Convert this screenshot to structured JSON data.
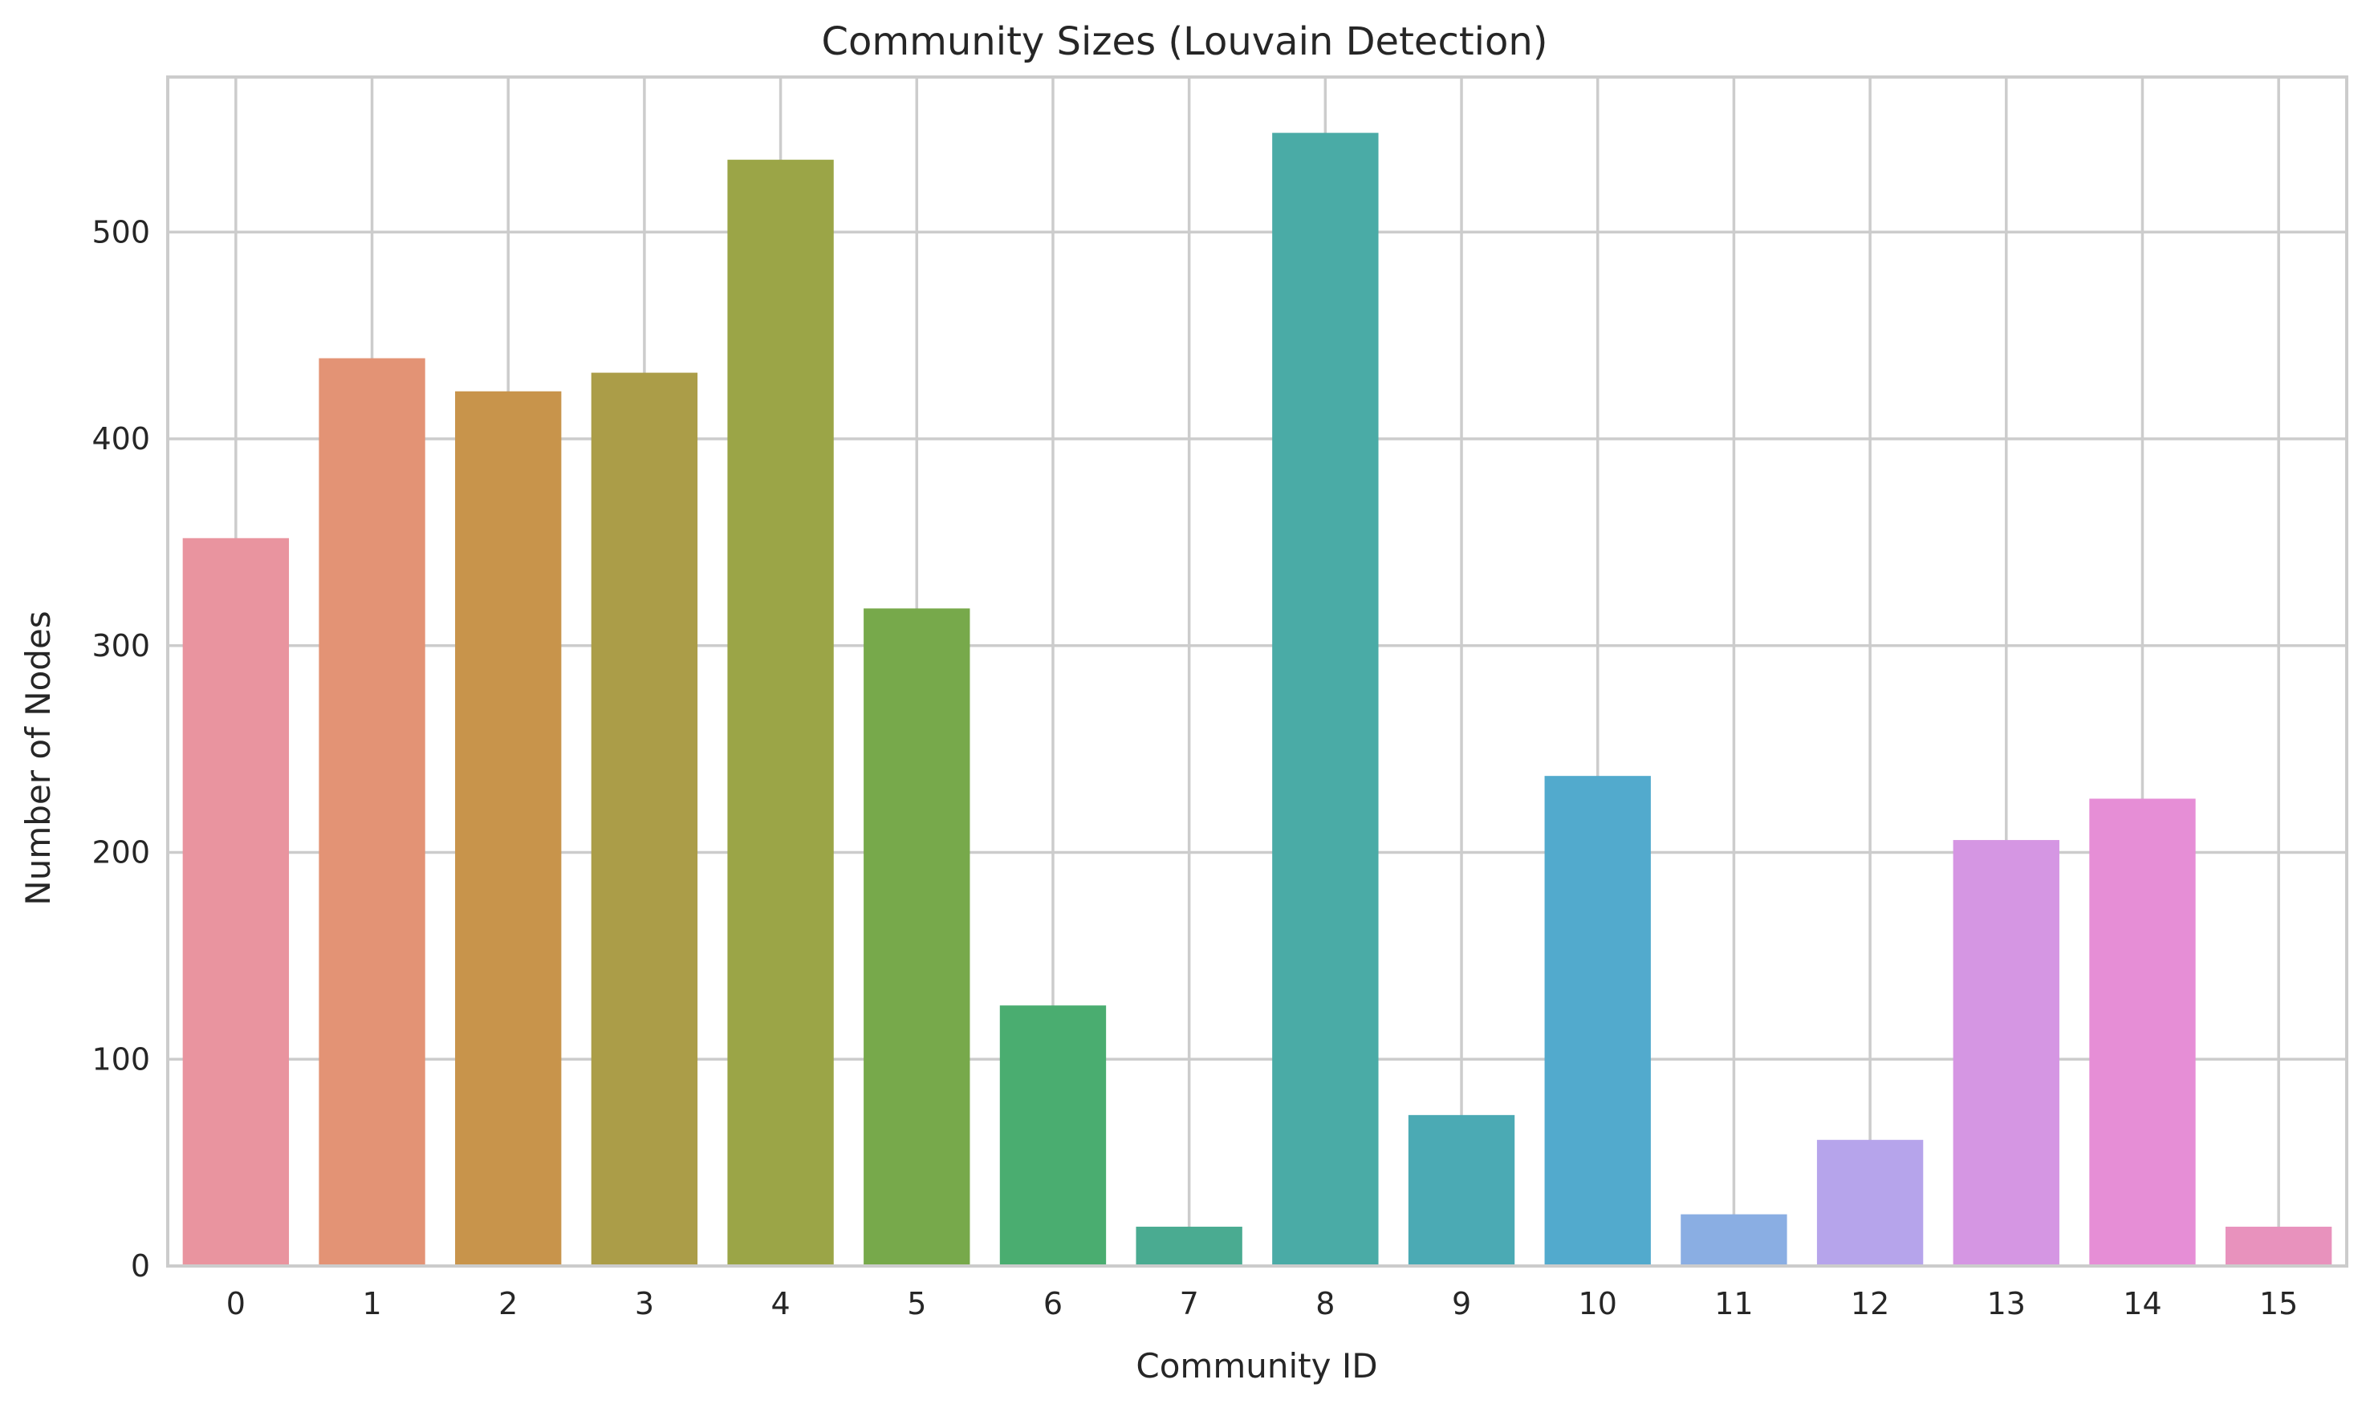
{
  "chart_data": {
    "type": "bar",
    "title": "Community Sizes (Louvain Detection)",
    "xlabel": "Community ID",
    "ylabel": "Number of Nodes",
    "categories": [
      "0",
      "1",
      "2",
      "3",
      "4",
      "5",
      "6",
      "7",
      "8",
      "9",
      "10",
      "11",
      "12",
      "13",
      "14",
      "15"
    ],
    "values": [
      352,
      439,
      423,
      432,
      535,
      318,
      126,
      19,
      548,
      73,
      237,
      25,
      61,
      206,
      226,
      19
    ],
    "colors": [
      "#e9949f",
      "#e39375",
      "#c8944b",
      "#ab9d48",
      "#9ba547",
      "#77a94b",
      "#4aad70",
      "#4aab91",
      "#4aaba6",
      "#4baab4",
      "#52aacd",
      "#8aaee3",
      "#b6a4eb",
      "#d596e3",
      "#e68ed6",
      "#e892bd"
    ],
    "ylim": [
      0,
      575
    ],
    "yticks": [
      0,
      100,
      200,
      300,
      400,
      500
    ],
    "grid": true,
    "legend": "none"
  }
}
